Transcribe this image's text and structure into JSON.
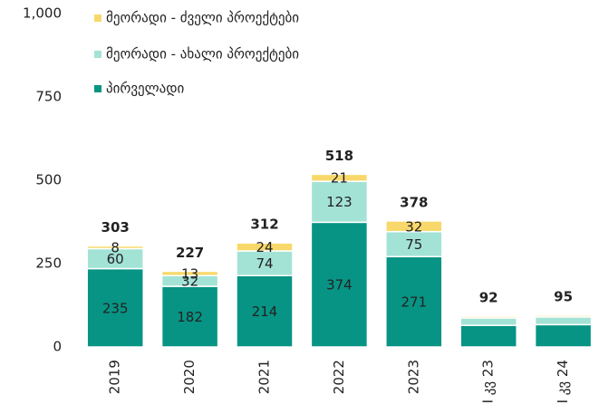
{
  "chart_data": {
    "type": "stacked_bar",
    "categories": [
      "2019",
      "2020",
      "2021",
      "2022",
      "2023",
      "I კვ 23",
      "I კვ 24"
    ],
    "series": [
      {
        "name": "პირველადი",
        "color": "#079484",
        "values": [
          235,
          182,
          214,
          374,
          271,
          65,
          67
        ],
        "value_labels": [
          235,
          182,
          214,
          374,
          271,
          null,
          null
        ]
      },
      {
        "name": "მეორადი - ახალი პროექტები",
        "color": "#a3e3d6",
        "values": [
          60,
          32,
          74,
          123,
          75,
          22,
          23
        ],
        "value_labels": [
          60,
          32,
          74,
          123,
          75,
          null,
          null
        ]
      },
      {
        "name": "მეორადი - ძველი პროექტები",
        "color": "#f8d86a",
        "values": [
          8,
          13,
          24,
          21,
          32,
          5,
          5
        ],
        "value_labels": [
          8,
          13,
          24,
          21,
          32,
          null,
          null
        ]
      }
    ],
    "totals": [
      303,
      227,
      312,
      518,
      378,
      92,
      95
    ],
    "ylim": [
      0,
      1000
    ],
    "yticks": [
      0,
      250,
      500,
      750,
      {
        "value": 1000,
        "label": "1,000"
      }
    ],
    "legend": "top-left"
  }
}
